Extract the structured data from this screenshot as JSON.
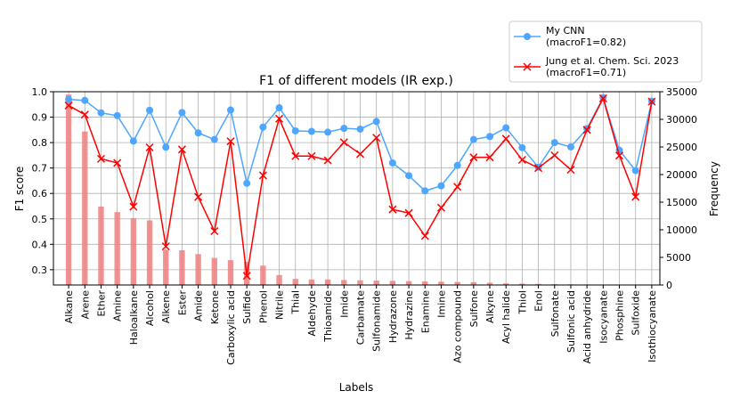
{
  "chart_data": {
    "type": "bar",
    "title": "F1 of different models (IR exp.)",
    "xlabel": "Labels",
    "ylabel": "F1 score",
    "y2label": "Frequency",
    "ylim": [
      0.24,
      1.0
    ],
    "y2lim": [
      0,
      35000
    ],
    "yticks": [
      "1.0",
      "0.9",
      "0.8",
      "0.7",
      "0.6",
      "0.5",
      "0.4",
      "0.3"
    ],
    "y2ticks": [
      "35000",
      "30000",
      "25000",
      "20000",
      "15000",
      "10000",
      "5000",
      "0"
    ],
    "grid": true,
    "legend_position": "top-right",
    "categories": [
      "Alkane",
      "Arene",
      "Ether",
      "Amine",
      "Haloalkane",
      "Alcohol",
      "Alkene",
      "Ester",
      "Amide",
      "Ketone",
      "Carboxylic acid",
      "Sulfide",
      "Phenol",
      "Nitrile",
      "Thial",
      "Aldehyde",
      "Thioamide",
      "Imide",
      "Carbamate",
      "Sulfonamide",
      "Hydrazone",
      "Hydrazine",
      "Enamine",
      "Imine",
      "Azo compound",
      "Sulfone",
      "Alkyne",
      "Acyl halide",
      "Thiol",
      "Enol",
      "Sulfonate",
      "Sulfonic acid",
      "Acid anhydride",
      "Isocyanate",
      "Phosphine",
      "Sulfoxide",
      "Isothiocyanate"
    ],
    "frequency": {
      "name": "Frequency",
      "color": "#f08080",
      "values": [
        34500,
        27800,
        14200,
        13200,
        12100,
        11700,
        6400,
        6300,
        5600,
        4900,
        4500,
        4200,
        3500,
        1800,
        1100,
        1000,
        1000,
        900,
        850,
        800,
        750,
        700,
        650,
        600,
        550,
        500,
        400,
        300,
        250,
        200,
        150,
        120,
        100,
        80,
        60,
        50,
        40
      ]
    },
    "series": [
      {
        "name": "My CNN",
        "legend_line2": "(macroF1=0.82)",
        "color": "#4da6ff",
        "marker": "circle",
        "values": [
          0.97,
          0.966,
          0.917,
          0.906,
          0.806,
          0.927,
          0.782,
          0.918,
          0.838,
          0.812,
          0.928,
          0.64,
          0.861,
          0.937,
          0.846,
          0.844,
          0.841,
          0.856,
          0.853,
          0.883,
          0.72,
          0.67,
          0.61,
          0.63,
          0.71,
          0.812,
          0.824,
          0.858,
          0.78,
          0.703,
          0.8,
          0.783,
          0.855,
          0.977,
          0.77,
          0.69,
          0.963
        ]
      },
      {
        "name": "Jung et al. Chem. Sci. 2023",
        "legend_line2": "(macroF1=0.71)",
        "color": "#ff0000",
        "marker": "x",
        "values": [
          0.946,
          0.91,
          0.736,
          0.72,
          0.548,
          0.781,
          0.392,
          0.773,
          0.586,
          0.452,
          0.805,
          0.276,
          0.671,
          0.894,
          0.747,
          0.747,
          0.73,
          0.801,
          0.755,
          0.819,
          0.537,
          0.523,
          0.433,
          0.544,
          0.626,
          0.742,
          0.742,
          0.815,
          0.732,
          0.7,
          0.75,
          0.693,
          0.85,
          0.974,
          0.749,
          0.587,
          0.961
        ]
      }
    ]
  }
}
